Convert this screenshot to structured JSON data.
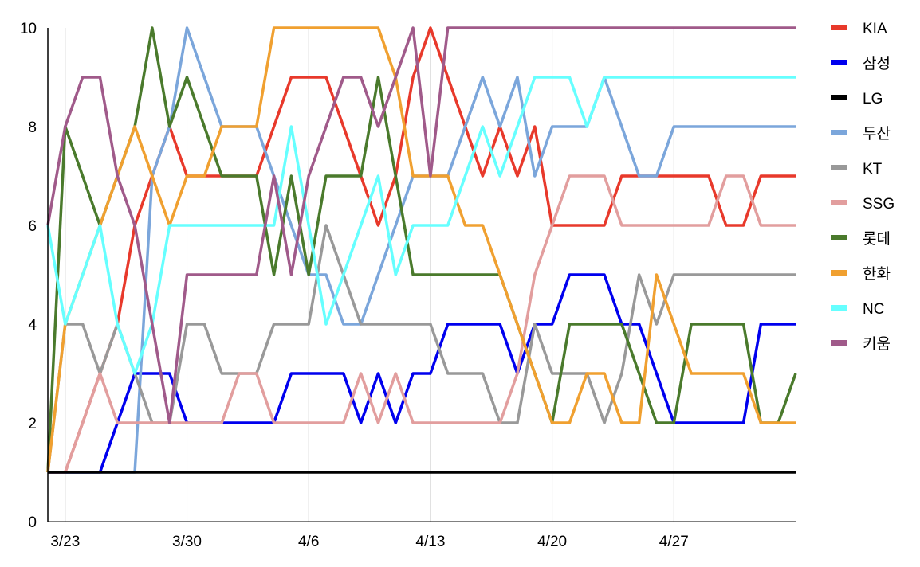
{
  "chart_data": {
    "type": "line",
    "title": "",
    "xlabel": "",
    "ylabel": "",
    "ylim": [
      0,
      10
    ],
    "yticks": [
      0,
      2,
      4,
      6,
      8,
      10
    ],
    "x_start": "3/22",
    "x_count": 44,
    "xticks": [
      {
        "i": 1,
        "label": "3/23"
      },
      {
        "i": 8,
        "label": "3/30"
      },
      {
        "i": 15,
        "label": "4/6"
      },
      {
        "i": 22,
        "label": "4/13"
      },
      {
        "i": 29,
        "label": "4/20"
      },
      {
        "i": 36,
        "label": "4/27"
      }
    ],
    "grid": {
      "vertical": true,
      "horizontal": false
    },
    "legend_position": "right",
    "series": [
      {
        "name": "KIA",
        "color": "#e8392b",
        "values": [
          1,
          1,
          2,
          3,
          4,
          6,
          7,
          8,
          7,
          7,
          7,
          7,
          7,
          8,
          9,
          9,
          9,
          8,
          7,
          6,
          7,
          9,
          10,
          9,
          8,
          7,
          8,
          7,
          8,
          6,
          6,
          6,
          6,
          7,
          7,
          7,
          7,
          7,
          7,
          6,
          6,
          7,
          7,
          7
        ]
      },
      {
        "name": "삼성",
        "color": "#0000ee",
        "values": [
          1,
          1,
          1,
          1,
          2,
          3,
          3,
          3,
          2,
          2,
          2,
          2,
          2,
          2,
          3,
          3,
          3,
          3,
          2,
          3,
          2,
          3,
          3,
          4,
          4,
          4,
          4,
          3,
          4,
          4,
          5,
          5,
          5,
          4,
          4,
          3,
          2,
          2,
          2,
          2,
          2,
          4,
          4,
          4
        ]
      },
      {
        "name": "LG",
        "color": "#000000",
        "values": [
          1,
          1,
          1,
          1,
          1,
          1,
          1,
          1,
          1,
          1,
          1,
          1,
          1,
          1,
          1,
          1,
          1,
          1,
          1,
          1,
          1,
          1,
          1,
          1,
          1,
          1,
          1,
          1,
          1,
          1,
          1,
          1,
          1,
          1,
          1,
          1,
          1,
          1,
          1,
          1,
          1,
          1,
          1,
          1
        ]
      },
      {
        "name": "두산",
        "color": "#7ba6db",
        "values": [
          1,
          1,
          1,
          1,
          1,
          1,
          7,
          8,
          10,
          9,
          8,
          8,
          8,
          7,
          6,
          5,
          5,
          4,
          4,
          5,
          6,
          7,
          7,
          7,
          8,
          9,
          8,
          9,
          7,
          8,
          8,
          8,
          9,
          8,
          7,
          7,
          8,
          8,
          8,
          8,
          8,
          8,
          8,
          8
        ]
      },
      {
        "name": "KT",
        "color": "#999999",
        "values": [
          1,
          4,
          4,
          3,
          4,
          3,
          2,
          2,
          4,
          4,
          3,
          3,
          3,
          4,
          4,
          4,
          6,
          5,
          4,
          4,
          4,
          4,
          4,
          3,
          3,
          3,
          2,
          2,
          4,
          3,
          3,
          3,
          2,
          3,
          5,
          4,
          5,
          5,
          5,
          5,
          5,
          5,
          5,
          5
        ]
      },
      {
        "name": "SSG",
        "color": "#e29e9e",
        "values": [
          1,
          1,
          2,
          3,
          2,
          2,
          2,
          2,
          2,
          2,
          2,
          3,
          3,
          2,
          2,
          2,
          2,
          2,
          3,
          2,
          3,
          2,
          2,
          2,
          2,
          2,
          2,
          3,
          5,
          6,
          7,
          7,
          7,
          6,
          6,
          6,
          6,
          6,
          6,
          7,
          7,
          6,
          6,
          6
        ]
      },
      {
        "name": "롯데",
        "color": "#4a7a2c",
        "values": [
          1,
          8,
          7,
          6,
          7,
          8,
          10,
          8,
          9,
          8,
          7,
          7,
          7,
          5,
          7,
          5,
          7,
          7,
          7,
          9,
          7,
          5,
          5,
          5,
          5,
          5,
          5,
          4,
          3,
          2,
          4,
          4,
          4,
          4,
          3,
          2,
          2,
          4,
          4,
          4,
          4,
          2,
          2,
          3
        ]
      },
      {
        "name": "한화",
        "color": "#f0a030",
        "values": [
          1,
          4,
          5,
          6,
          7,
          8,
          7,
          6,
          7,
          7,
          8,
          8,
          8,
          10,
          10,
          10,
          10,
          10,
          10,
          10,
          9,
          7,
          7,
          7,
          6,
          6,
          5,
          4,
          3,
          2,
          2,
          3,
          3,
          2,
          2,
          5,
          4,
          3,
          3,
          3,
          3,
          2,
          2,
          2
        ]
      },
      {
        "name": "NC",
        "color": "#66ffff",
        "values": [
          6,
          4,
          5,
          6,
          4,
          3,
          4,
          6,
          6,
          6,
          6,
          6,
          6,
          6,
          8,
          6,
          4,
          5,
          6,
          7,
          5,
          6,
          6,
          6,
          7,
          8,
          7,
          8,
          9,
          9,
          9,
          8,
          9,
          9,
          9,
          9,
          9,
          9,
          9,
          9,
          9,
          9,
          9,
          9
        ]
      },
      {
        "name": "키움",
        "color": "#a05a8a",
        "values": [
          6,
          8,
          9,
          9,
          7,
          6,
          4,
          2,
          5,
          5,
          5,
          5,
          5,
          7,
          5,
          7,
          8,
          9,
          9,
          8,
          9,
          10,
          7,
          10,
          10,
          10,
          10,
          10,
          10,
          10,
          10,
          10,
          10,
          10,
          10,
          10,
          10,
          10,
          10,
          10,
          10,
          10,
          10,
          10
        ]
      }
    ]
  }
}
